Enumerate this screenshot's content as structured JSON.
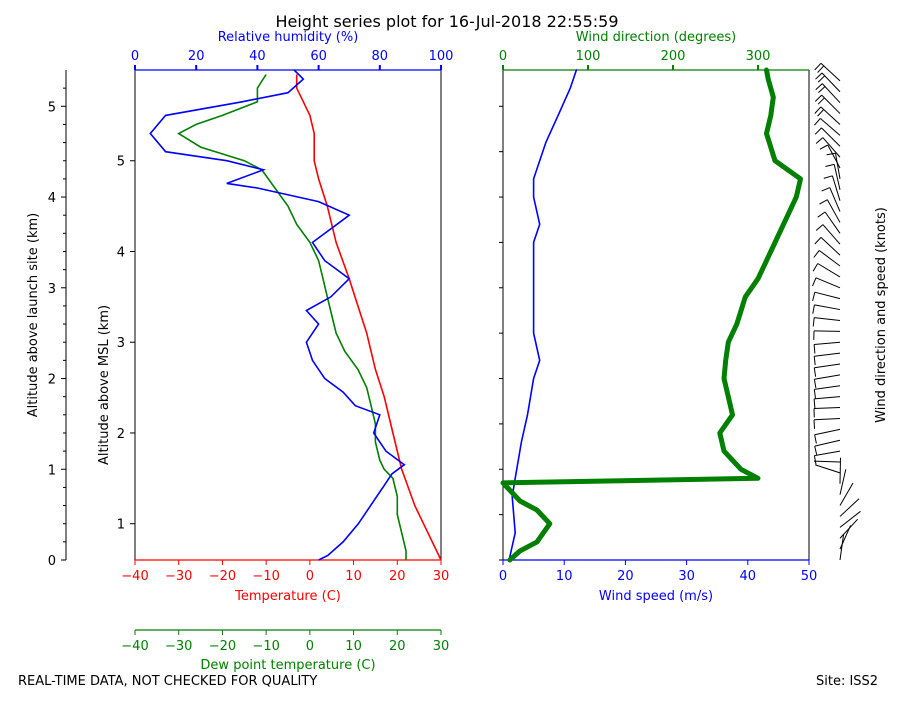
{
  "chart_data": {
    "type": "line",
    "title": "Height series plot for 16-Jul-2018 22:55:59",
    "footer_left": "REAL-TIME DATA, NOT CHECKED FOR QUALITY",
    "footer_right": "Site: ISS2",
    "left_panel": {
      "left_axis_label": "Altitude above launch site (km)",
      "left_axis_ticks": [
        "0",
        "1",
        "2",
        "3",
        "4",
        "5"
      ],
      "msl_axis_label": "Altitude above MSL (km)",
      "msl_axis_ticks": [
        "1",
        "2",
        "3",
        "4",
        "5"
      ],
      "rh_axis": {
        "label": "Relative humidity (%)",
        "ticks": [
          "0",
          "20",
          "40",
          "60",
          "80",
          "100"
        ],
        "xlim": [
          0,
          100
        ],
        "color": "#0000ff"
      },
      "temp_axis": {
        "label": "Temperature (C)",
        "ticks": [
          "−40",
          "−30",
          "−20",
          "−10",
          "0",
          "10",
          "20",
          "30"
        ],
        "xlim": [
          -40,
          30
        ],
        "color": "#ff0000"
      },
      "dew_axis": {
        "label": "Dew point temperature (C)",
        "ticks": [
          "−40",
          "−30",
          "−20",
          "−10",
          "0",
          "10",
          "20",
          "30"
        ],
        "xlim": [
          -40,
          30
        ],
        "color": "#008000"
      },
      "ylim_km_above_launch": [
        0,
        5.4
      ],
      "series": [
        {
          "axis": "temp",
          "color": "#ff0000",
          "values": [
            [
              30,
              0
            ],
            [
              27,
              0.3
            ],
            [
              24,
              0.6
            ],
            [
              21,
              1.0
            ],
            [
              19,
              1.4
            ],
            [
              17,
              1.8
            ],
            [
              15,
              2.1
            ],
            [
              13,
              2.5
            ],
            [
              11,
              2.8
            ],
            [
              9,
              3.1
            ],
            [
              6,
              3.5
            ],
            [
              4,
              3.9
            ],
            [
              2,
              4.2
            ],
            [
              1,
              4.4
            ],
            [
              1,
              4.7
            ],
            [
              0,
              4.9
            ],
            [
              -1,
              5.0
            ],
            [
              -2,
              5.1
            ],
            [
              -3,
              5.2
            ],
            [
              -3,
              5.35
            ]
          ]
        },
        {
          "axis": "dew",
          "color": "#008000",
          "values": [
            [
              22,
              0
            ],
            [
              22,
              0.1
            ],
            [
              21,
              0.3
            ],
            [
              20,
              0.5
            ],
            [
              20,
              0.7
            ],
            [
              19,
              0.9
            ],
            [
              17,
              1.0
            ],
            [
              16,
              1.1
            ],
            [
              15,
              1.3
            ],
            [
              15,
              1.5
            ],
            [
              14,
              1.7
            ],
            [
              13,
              1.9
            ],
            [
              11,
              2.1
            ],
            [
              8,
              2.3
            ],
            [
              6,
              2.5
            ],
            [
              5,
              2.7
            ],
            [
              4,
              2.9
            ],
            [
              3,
              3.1
            ],
            [
              2,
              3.3
            ],
            [
              0,
              3.5
            ],
            [
              -3,
              3.7
            ],
            [
              -5,
              3.9
            ],
            [
              -8,
              4.1
            ],
            [
              -11,
              4.3
            ],
            [
              -15,
              4.4
            ],
            [
              -25,
              4.55
            ],
            [
              -30,
              4.7
            ],
            [
              -26,
              4.8
            ],
            [
              -20,
              4.9
            ],
            [
              -12,
              5.05
            ],
            [
              -12,
              5.2
            ],
            [
              -10,
              5.35
            ]
          ]
        },
        {
          "axis": "rh",
          "color": "#0000ff",
          "values": [
            [
              60,
              0
            ],
            [
              63,
              0.05
            ],
            [
              68,
              0.2
            ],
            [
              73,
              0.4
            ],
            [
              77,
              0.6
            ],
            [
              81,
              0.8
            ],
            [
              84,
              0.95
            ],
            [
              88,
              1.05
            ],
            [
              82,
              1.2
            ],
            [
              78,
              1.4
            ],
            [
              80,
              1.6
            ],
            [
              72,
              1.7
            ],
            [
              68,
              1.85
            ],
            [
              62,
              2.0
            ],
            [
              58,
              2.2
            ],
            [
              56,
              2.4
            ],
            [
              60,
              2.6
            ],
            [
              56,
              2.75
            ],
            [
              64,
              2.9
            ],
            [
              70,
              3.1
            ],
            [
              62,
              3.3
            ],
            [
              58,
              3.5
            ],
            [
              66,
              3.7
            ],
            [
              70,
              3.8
            ],
            [
              60,
              3.95
            ],
            [
              40,
              4.1
            ],
            [
              30,
              4.15
            ],
            [
              42,
              4.3
            ],
            [
              30,
              4.4
            ],
            [
              10,
              4.5
            ],
            [
              5,
              4.7
            ],
            [
              10,
              4.9
            ],
            [
              35,
              5.05
            ],
            [
              50,
              5.15
            ],
            [
              55,
              5.3
            ],
            [
              52,
              5.4
            ]
          ]
        }
      ]
    },
    "right_panel": {
      "speed_axis": {
        "label": "Wind speed (m/s)",
        "ticks": [
          "0",
          "10",
          "20",
          "30",
          "40",
          "50"
        ],
        "xlim": [
          0,
          50
        ],
        "color": "#0000ff"
      },
      "dir_axis": {
        "label": "Wind direction (degrees)",
        "ticks": [
          "0",
          "100",
          "200",
          "300"
        ],
        "xlim": [
          0,
          360
        ],
        "color": "#008000"
      },
      "barb_axis_label": "Wind direction and speed (knots)",
      "ylim_km_above_launch": [
        0,
        5.4
      ],
      "series": [
        {
          "axis": "speed",
          "color": "#0000ff",
          "values": [
            [
              1,
              0
            ],
            [
              2,
              0.3
            ],
            [
              1.5,
              0.7
            ],
            [
              2,
              0.9
            ],
            [
              2.5,
              1.1
            ],
            [
              3,
              1.3
            ],
            [
              4,
              1.6
            ],
            [
              5,
              2.0
            ],
            [
              6,
              2.2
            ],
            [
              5,
              2.5
            ],
            [
              5,
              3.0
            ],
            [
              5,
              3.5
            ],
            [
              6,
              3.7
            ],
            [
              5,
              4.0
            ],
            [
              5,
              4.2
            ],
            [
              6,
              4.4
            ],
            [
              7,
              4.6
            ],
            [
              9,
              4.9
            ],
            [
              11,
              5.2
            ],
            [
              12,
              5.4
            ]
          ]
        },
        {
          "axis": "dir",
          "color": "#008000",
          "values": [
            [
              8,
              0
            ],
            [
              20,
              0.1
            ],
            [
              40,
              0.2
            ],
            [
              55,
              0.4
            ],
            [
              40,
              0.55
            ],
            [
              20,
              0.65
            ],
            [
              0,
              0.85
            ],
            [
              300,
              0.9
            ],
            [
              280,
              1.0
            ],
            [
              260,
              1.2
            ],
            [
              255,
              1.4
            ],
            [
              270,
              1.6
            ],
            [
              265,
              1.8
            ],
            [
              260,
              2.0
            ],
            [
              262,
              2.2
            ],
            [
              265,
              2.4
            ],
            [
              275,
              2.6
            ],
            [
              285,
              2.9
            ],
            [
              300,
              3.1
            ],
            [
              315,
              3.4
            ],
            [
              330,
              3.7
            ],
            [
              345,
              4.0
            ],
            [
              350,
              4.2
            ],
            [
              320,
              4.4
            ],
            [
              310,
              4.7
            ],
            [
              315,
              4.9
            ],
            [
              318,
              5.1
            ],
            [
              312,
              5.3
            ],
            [
              310,
              5.4
            ]
          ]
        }
      ]
    }
  }
}
